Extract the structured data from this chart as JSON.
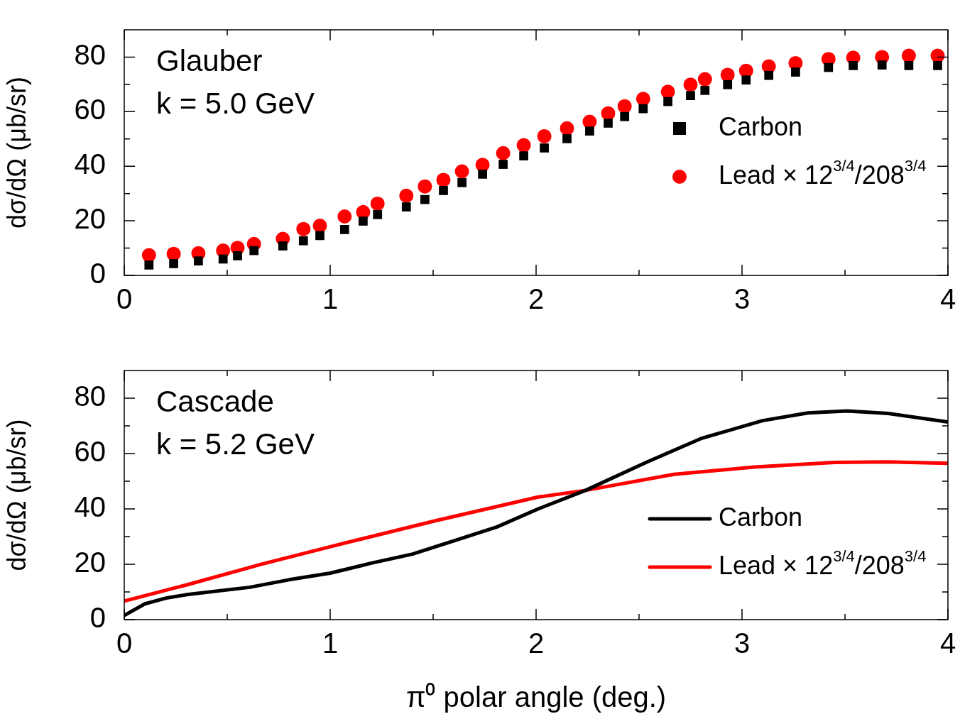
{
  "chart_data": [
    {
      "type": "scatter",
      "annotations": [
        "Glauber",
        "k = 5.0 GeV"
      ],
      "ylabel": "dσ/dΩ (μb/sr)",
      "xlim": [
        0,
        4
      ],
      "xticks": [
        0,
        {
          "value": 0.5,
          "label": null
        },
        1,
        {
          "value": 1.5,
          "label": null
        },
        2,
        {
          "value": 2.5,
          "label": null
        },
        3,
        {
          "value": 3.5,
          "label": null
        },
        4
      ],
      "ylim": [
        0,
        90
      ],
      "yticks": [
        0,
        {
          "value": 10,
          "label": null
        },
        20,
        {
          "value": 30,
          "label": null
        },
        40,
        {
          "value": 50,
          "label": null
        },
        60,
        {
          "value": 70,
          "label": null
        },
        80
      ],
      "grid": false,
      "legend": "right",
      "x": [
        0.12,
        0.24,
        0.36,
        0.48,
        0.55,
        0.63,
        0.77,
        0.87,
        0.95,
        1.07,
        1.16,
        1.23,
        1.37,
        1.46,
        1.55,
        1.64,
        1.74,
        1.84,
        1.94,
        2.04,
        2.15,
        2.26,
        2.35,
        2.43,
        2.52,
        2.64,
        2.75,
        2.82,
        2.93,
        3.02,
        3.13,
        3.26,
        3.42,
        3.54,
        3.68,
        3.81,
        3.95
      ],
      "series": [
        {
          "name": "Carbon",
          "color": "#000000",
          "marker": "square",
          "values": [
            3.8,
            4.3,
            5.3,
            6.0,
            7.2,
            9.1,
            10.8,
            12.7,
            14.6,
            16.8,
            19.9,
            22.3,
            25.1,
            27.8,
            31.1,
            34.0,
            37.1,
            40.7,
            43.8,
            46.7,
            50.1,
            52.9,
            55.8,
            58.2,
            61.1,
            63.7,
            65.9,
            67.8,
            69.9,
            71.6,
            73.3,
            74.5,
            76.2,
            76.9,
            77.1,
            76.9,
            76.9
          ]
        },
        {
          "name": "Lead × 12$^{3/4}$/208$^{3/4}$",
          "color": "#ff0000",
          "marker": "circle",
          "values": [
            7.4,
            7.9,
            8.1,
            9.1,
            10.1,
            11.5,
            13.4,
            17.0,
            18.2,
            21.6,
            23.2,
            26.3,
            29.2,
            32.6,
            35.0,
            38.1,
            40.5,
            44.8,
            47.7,
            51.0,
            53.9,
            56.3,
            59.4,
            62.0,
            64.7,
            67.3,
            69.9,
            71.9,
            73.5,
            75.0,
            76.6,
            77.8,
            79.3,
            79.8,
            80.0,
            80.5,
            80.5
          ]
        }
      ]
    },
    {
      "type": "line",
      "annotations": [
        "Cascade",
        "k = 5.2 GeV"
      ],
      "xlabel": "π⁰ polar angle (deg.)",
      "ylabel": "dσ/dΩ (μb/sr)",
      "xlim": [
        0,
        4
      ],
      "xticks": [
        0,
        {
          "value": 0.5,
          "label": null
        },
        1,
        {
          "value": 1.5,
          "label": null
        },
        2,
        {
          "value": 2.5,
          "label": null
        },
        3,
        {
          "value": 3.5,
          "label": null
        },
        4
      ],
      "ylim": [
        0,
        90
      ],
      "yticks": [
        0,
        {
          "value": 10,
          "label": null
        },
        20,
        {
          "value": 30,
          "label": null
        },
        40,
        {
          "value": 50,
          "label": null
        },
        60,
        {
          "value": 70,
          "label": null
        },
        80
      ],
      "grid": false,
      "legend": "bottom right",
      "marker": "none",
      "series": [
        {
          "name": "Carbon",
          "color": "#000000",
          "x": [
            0,
            0.1,
            0.21,
            0.31,
            0.61,
            0.8,
            1.0,
            1.2,
            1.4,
            1.61,
            1.81,
            2.01,
            2.24,
            2.54,
            2.8,
            3.1,
            3.32,
            3.51,
            3.71,
            4.0
          ],
          "values": [
            1.5,
            5.7,
            7.9,
            9.1,
            11.7,
            14.4,
            16.8,
            20.4,
            23.7,
            28.7,
            33.5,
            40.0,
            46.7,
            57.0,
            65.4,
            71.9,
            74.7,
            75.4,
            74.5,
            71.4
          ]
        },
        {
          "name": "Lead × 12$^{3/4}$/208$^{3/4}$",
          "color": "#ff0000",
          "x": [
            0,
            0.31,
            0.67,
            1.04,
            1.51,
            2.01,
            2.24,
            2.67,
            3.06,
            3.45,
            3.71,
            4.0
          ],
          "values": [
            6.7,
            12.7,
            20.1,
            27.1,
            35.7,
            44.3,
            46.7,
            52.5,
            55.1,
            56.8,
            57.0,
            56.5
          ]
        }
      ]
    }
  ]
}
